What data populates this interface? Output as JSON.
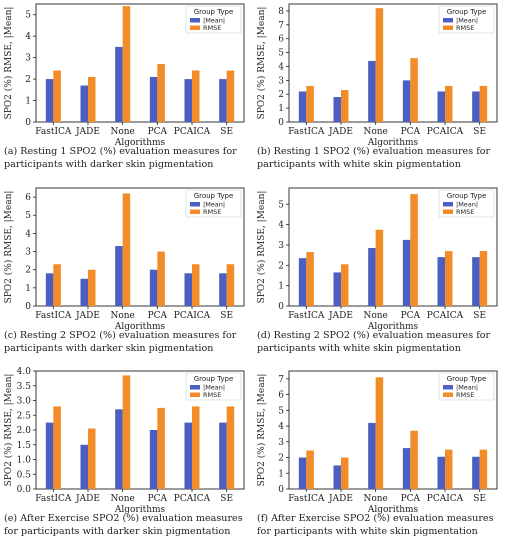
{
  "colors": {
    "mean": "#4a5fc1",
    "rmse": "#f28c28",
    "frame": "#222222"
  },
  "chart_data": [
    {
      "type": "bar",
      "caption_line1": "(a) Resting 1 SPO2 (%) evaluation measures for",
      "caption_line2": "participants with darker skin pigmentation",
      "xlabel": "Algorithms",
      "ylabel": "SPO2 (%) RMSE, |Mean|",
      "ylim": [
        0,
        5.5
      ],
      "yticks": [
        "0",
        "1",
        "2",
        "3",
        "4",
        "5"
      ],
      "legend_title": "Group Type",
      "categories": [
        "FastICA",
        "JADE",
        "None",
        "PCA",
        "PCAICA",
        "SE"
      ],
      "series": [
        {
          "name": "|Mean|",
          "values": [
            2.0,
            1.7,
            3.5,
            2.1,
            2.0,
            2.0
          ]
        },
        {
          "name": "RMSE",
          "values": [
            2.4,
            2.1,
            5.4,
            2.7,
            2.4,
            2.4
          ]
        }
      ]
    },
    {
      "type": "bar",
      "caption_line1": "(b) Resting 1 SPO2 (%) evaluation measures for",
      "caption_line2": "participants with white skin pigmentation",
      "xlabel": "Algorithms",
      "ylabel": "SPO2 (%) RMSE, |Mean|",
      "ylim": [
        0,
        8.5
      ],
      "yticks": [
        "0",
        "1",
        "2",
        "3",
        "4",
        "5",
        "6",
        "7",
        "8"
      ],
      "legend_title": "Group Type",
      "categories": [
        "FastICA",
        "JADE",
        "None",
        "PCA",
        "PCAICA",
        "SE"
      ],
      "series": [
        {
          "name": "|Mean|",
          "values": [
            2.2,
            1.8,
            4.4,
            3.0,
            2.2,
            2.2
          ]
        },
        {
          "name": "RMSE",
          "values": [
            2.6,
            2.3,
            8.2,
            4.6,
            2.6,
            2.6
          ]
        }
      ]
    },
    {
      "type": "bar",
      "caption_line1": "(c) Resting 2 SPO2 (%) evaluation measures for",
      "caption_line2": "participants with darker skin pigmentation",
      "xlabel": "Algorithms",
      "ylabel": "SPO2 (%) RMSE, |Mean|",
      "ylim": [
        0,
        6.5
      ],
      "yticks": [
        "0",
        "1",
        "2",
        "3",
        "4",
        "5",
        "6"
      ],
      "legend_title": "Group Type",
      "categories": [
        "FastICA",
        "JADE",
        "None",
        "PCA",
        "PCAICA",
        "SE"
      ],
      "series": [
        {
          "name": "|Mean|",
          "values": [
            1.8,
            1.5,
            3.3,
            2.0,
            1.8,
            1.8
          ]
        },
        {
          "name": "RMSE",
          "values": [
            2.3,
            2.0,
            6.2,
            3.0,
            2.3,
            2.3
          ]
        }
      ]
    },
    {
      "type": "bar",
      "caption_line1": "(d) Resting 2 SPO2 (%) evaluation measures for",
      "caption_line2": "participants with white skin pigmentation",
      "xlabel": "Algorithms",
      "ylabel": "SPO2 (%) RMSE, |Mean|",
      "ylim": [
        0,
        5.8
      ],
      "yticks": [
        "0",
        "1",
        "2",
        "3",
        "4",
        "5"
      ],
      "legend_title": "Group Type",
      "categories": [
        "FastICA",
        "JADE",
        "None",
        "PCA",
        "PCAICA",
        "SE"
      ],
      "series": [
        {
          "name": "|Mean|",
          "values": [
            2.35,
            1.65,
            2.85,
            3.25,
            2.4,
            2.4
          ]
        },
        {
          "name": "RMSE",
          "values": [
            2.65,
            2.05,
            3.75,
            5.5,
            2.7,
            2.7
          ]
        }
      ]
    },
    {
      "type": "bar",
      "caption_line1": "(e) After Exercise SPO2 (%) evaluation measures",
      "caption_line2": "for participants with darker skin pigmentation",
      "xlabel": "Algorithms",
      "ylabel": "SPO2 (%) RMSE, |Mean|",
      "ylim": [
        0,
        4.0
      ],
      "yticks": [
        "0.0",
        "0.5",
        "1.0",
        "1.5",
        "2.0",
        "2.5",
        "3.0",
        "3.5",
        "4.0"
      ],
      "legend_title": "Group Type",
      "categories": [
        "FastICA",
        "JADE",
        "None",
        "PCA",
        "PCAICA",
        "SE"
      ],
      "series": [
        {
          "name": "|Mean|",
          "values": [
            2.25,
            1.5,
            2.7,
            2.0,
            2.25,
            2.25
          ]
        },
        {
          "name": "RMSE",
          "values": [
            2.8,
            2.05,
            3.85,
            2.75,
            2.8,
            2.8
          ]
        }
      ]
    },
    {
      "type": "bar",
      "caption_line1": "(f) After Exercise SPO2 (%) evaluation measures",
      "caption_line2": "for participants with white skin pigmentation",
      "xlabel": "Algorithms",
      "ylabel": "SPO2 (%) RMSE, |Mean|",
      "ylim": [
        0,
        7.5
      ],
      "yticks": [
        "0",
        "1",
        "2",
        "3",
        "4",
        "5",
        "6",
        "7"
      ],
      "legend_title": "Group Type",
      "categories": [
        "FastICA",
        "JADE",
        "None",
        "PCA",
        "PCAICA",
        "SE"
      ],
      "series": [
        {
          "name": "|Mean|",
          "values": [
            2.0,
            1.5,
            4.2,
            2.6,
            2.05,
            2.05
          ]
        },
        {
          "name": "RMSE",
          "values": [
            2.45,
            2.0,
            7.1,
            3.7,
            2.5,
            2.5
          ]
        }
      ]
    }
  ]
}
